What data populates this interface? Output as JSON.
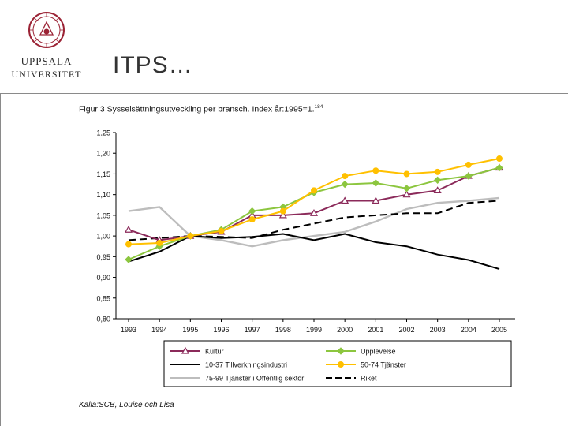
{
  "header": {
    "logo_line1": "UPPSALA",
    "logo_line2": "UNIVERSITET",
    "title": "ITPS…"
  },
  "figure": {
    "caption": "Figur 3 Sysselsättningsutveckling per bransch. Index år:1995=1.",
    "caption_sup": "184",
    "source": "Källa:SCB, Louise och Lisa"
  },
  "chart_data": {
    "type": "line",
    "title": "Figur 3 Sysselsättningsutveckling per bransch. Index år:1995=1.",
    "xlabel": "",
    "ylabel": "",
    "categories": [
      "1993",
      "1994",
      "1995",
      "1996",
      "1997",
      "1998",
      "1999",
      "2000",
      "2001",
      "2002",
      "2003",
      "2004",
      "2005"
    ],
    "ylim": [
      0.8,
      1.25
    ],
    "yticks": [
      "1,25",
      "1,20",
      "1,15",
      "1,10",
      "1,05",
      "1,00",
      "0,95",
      "0,90",
      "0,85",
      "0,80"
    ],
    "grid": false,
    "legend_position": "bottom",
    "series": [
      {
        "name": "Kultur",
        "color": "#8b2a5a",
        "dash": "solid",
        "marker": "triangle",
        "values": [
          1.015,
          0.99,
          1.0,
          1.01,
          1.05,
          1.05,
          1.055,
          1.085,
          1.085,
          1.1,
          1.11,
          1.145,
          1.165
        ]
      },
      {
        "name": "Upplevelse",
        "color": "#8cc63f",
        "dash": "solid",
        "marker": "diamond",
        "values": [
          0.943,
          0.975,
          1.0,
          1.015,
          1.06,
          1.07,
          1.105,
          1.125,
          1.128,
          1.115,
          1.135,
          1.145,
          1.165
        ]
      },
      {
        "name": "10-37 Tillverkningsindustri",
        "color": "#000000",
        "dash": "solid",
        "marker": "none",
        "values": [
          0.938,
          0.962,
          1.0,
          0.995,
          0.998,
          1.005,
          0.99,
          1.005,
          0.985,
          0.975,
          0.955,
          0.942,
          0.92
        ]
      },
      {
        "name": "50-74 Tjänster",
        "color": "#ffc000",
        "dash": "solid",
        "marker": "circle",
        "values": [
          0.98,
          0.983,
          1.0,
          1.012,
          1.04,
          1.06,
          1.11,
          1.145,
          1.158,
          1.15,
          1.155,
          1.172,
          1.187
        ]
      },
      {
        "name": "75-99 Tjänster i Offentlig sektor",
        "color": "#bdbdbd",
        "dash": "solid",
        "marker": "none",
        "values": [
          1.06,
          1.07,
          1.0,
          0.99,
          0.975,
          0.99,
          1.0,
          1.01,
          1.035,
          1.065,
          1.08,
          1.085,
          1.092
        ]
      },
      {
        "name": "Riket",
        "color": "#000000",
        "dash": "dashed",
        "marker": "none",
        "values": [
          0.99,
          0.995,
          1.0,
          0.998,
          0.995,
          1.015,
          1.03,
          1.045,
          1.05,
          1.055,
          1.055,
          1.08,
          1.085
        ]
      }
    ]
  }
}
